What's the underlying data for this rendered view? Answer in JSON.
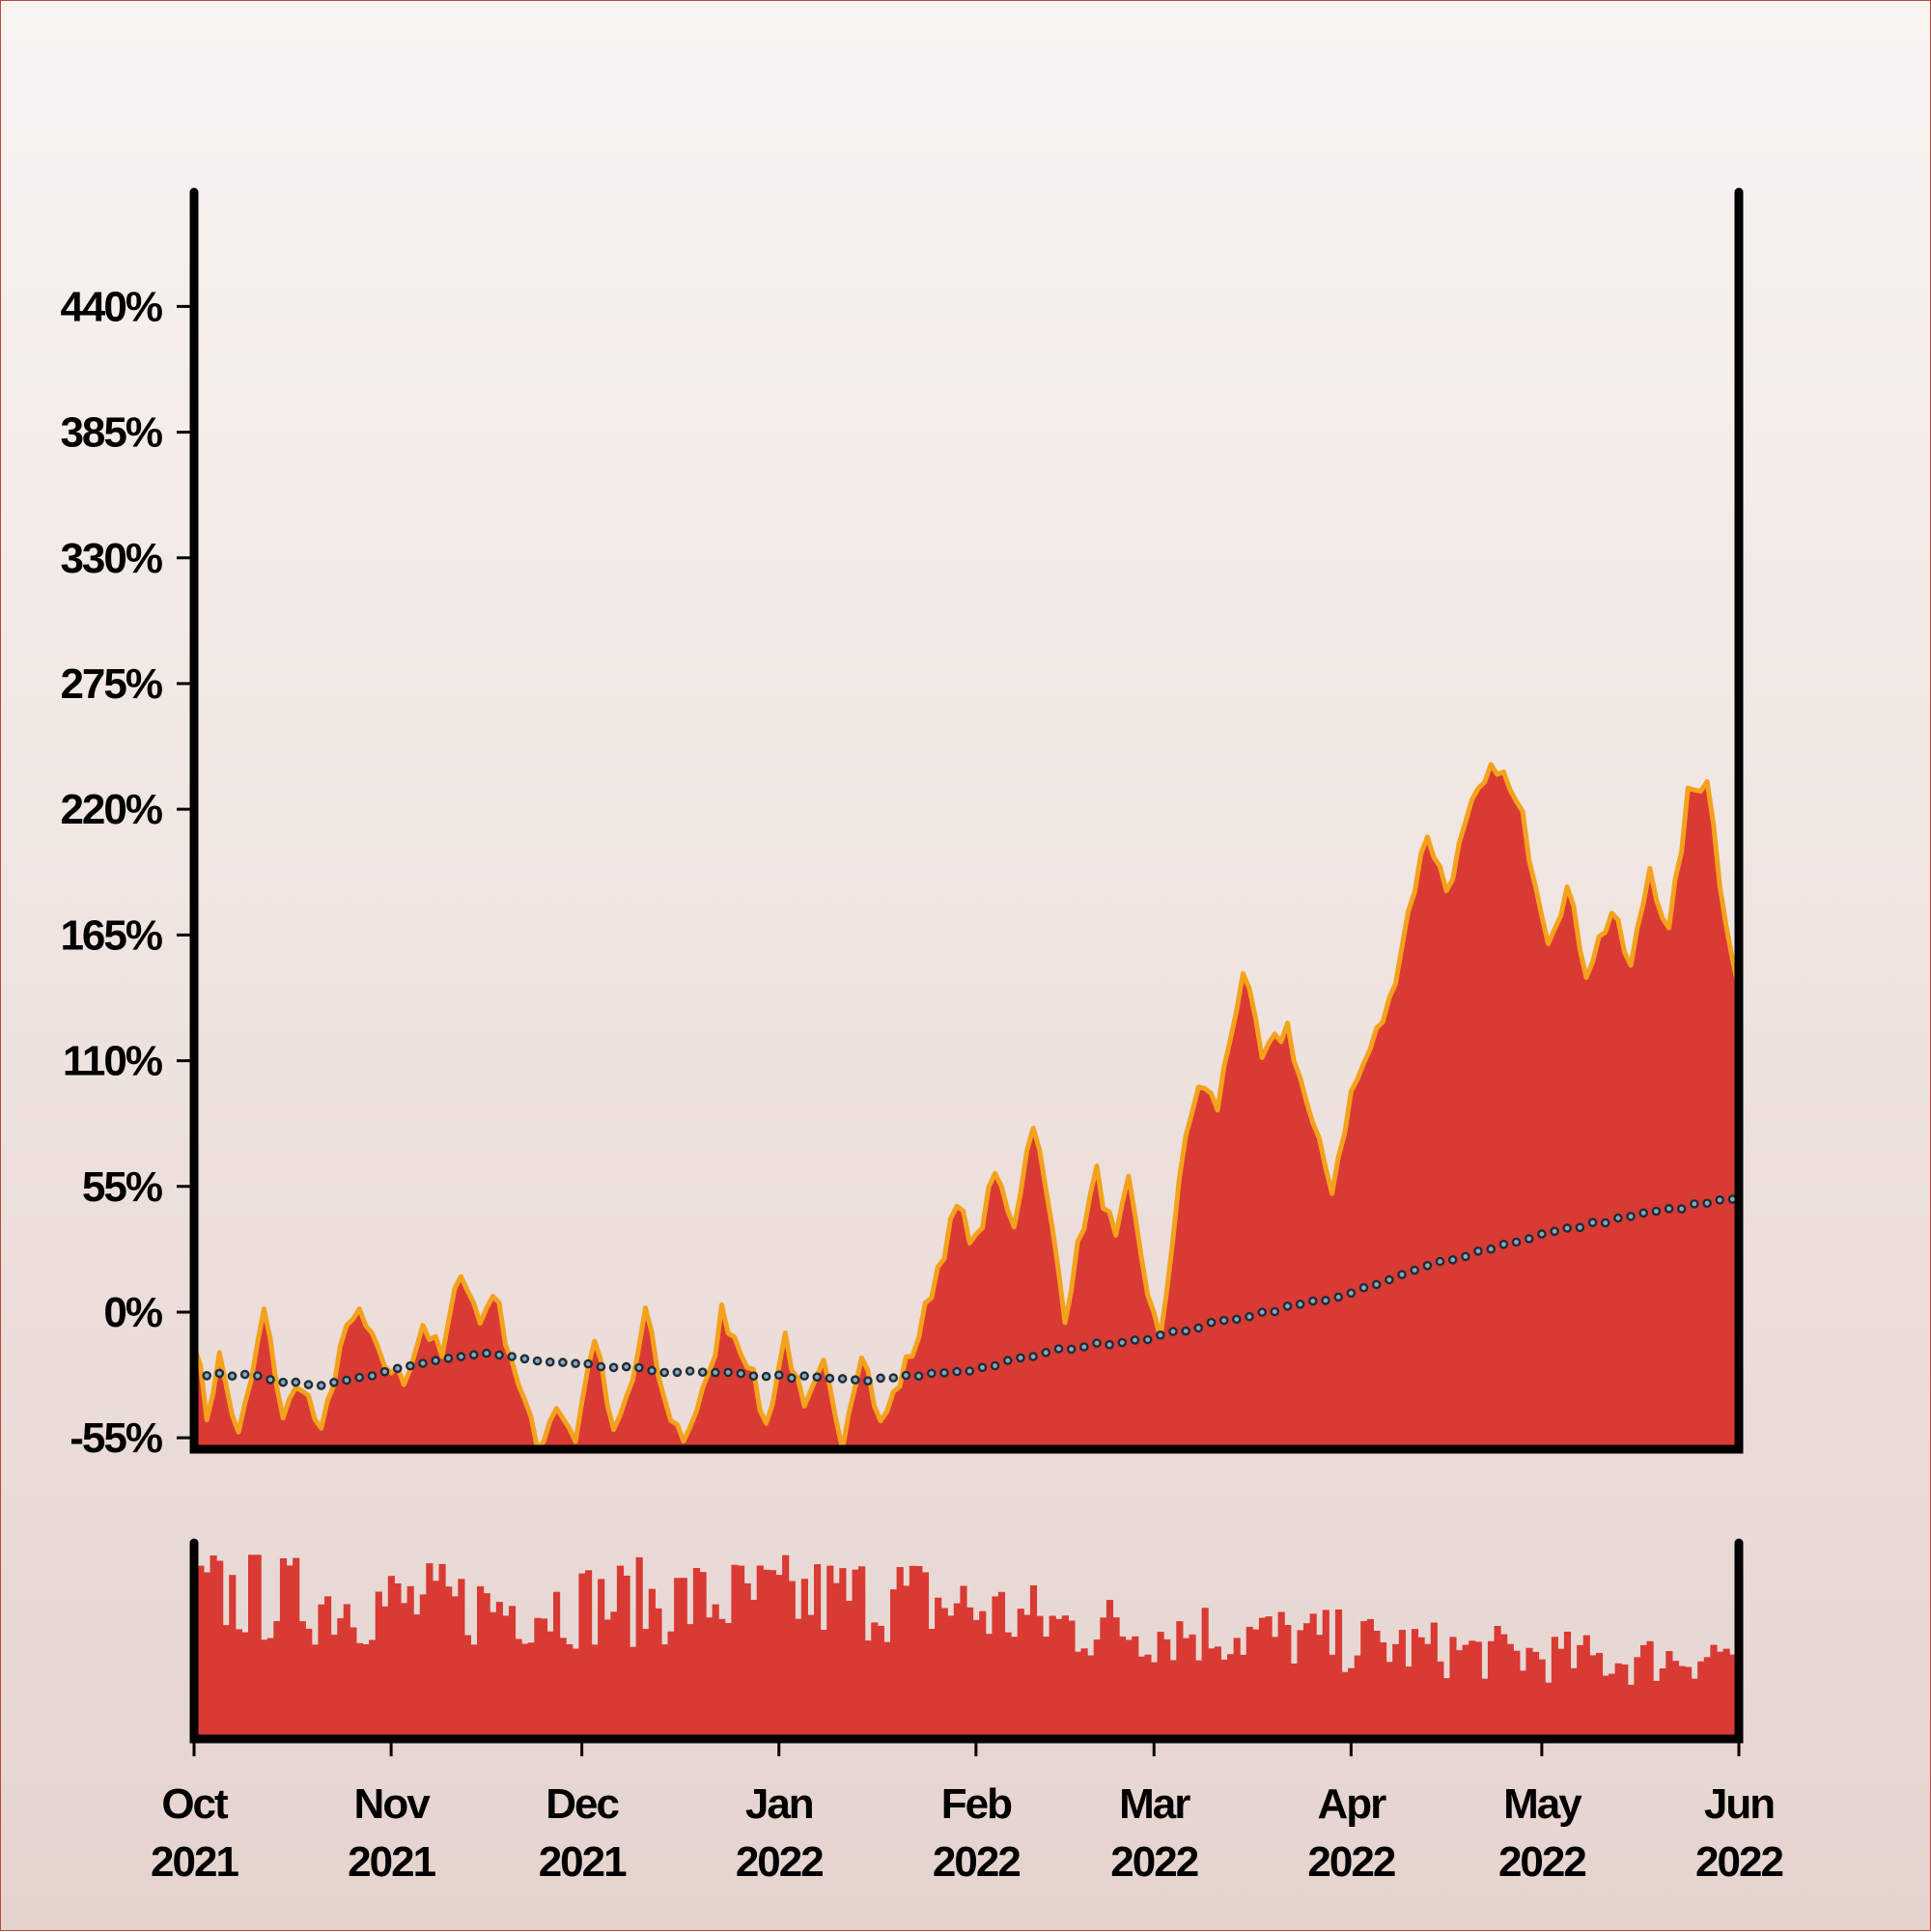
{
  "chart_data": {
    "type": "area",
    "title": "",
    "xlabel": "",
    "ylabel": "",
    "ylim": [
      -60,
      490
    ],
    "yticks": [
      -55,
      0,
      55,
      110,
      165,
      220,
      275,
      330,
      385,
      440
    ],
    "ytick_labels": [
      "-55%",
      "0%",
      "55%",
      "110%",
      "165%",
      "220%",
      "275%",
      "330%",
      "385%",
      "440%"
    ],
    "x_range": [
      "2021-10-01",
      "2022-06-01"
    ],
    "xticks": [
      "2021-10-01",
      "2021-11-01",
      "2021-12-01",
      "2022-01-01",
      "2022-02-01",
      "2022-03-01",
      "2022-04-01",
      "2022-05-01",
      "2022-06-01"
    ],
    "xtick_labels": [
      [
        "Oct",
        "2021"
      ],
      [
        "Nov",
        "2021"
      ],
      [
        "Dec",
        "2021"
      ],
      [
        "Jan",
        "2022"
      ],
      [
        "Feb",
        "2022"
      ],
      [
        "Mar",
        "2022"
      ],
      [
        "Apr",
        "2022"
      ],
      [
        "May",
        "2022"
      ],
      [
        "Jun",
        "2022"
      ]
    ],
    "price_keyframes": [
      [
        "2021-10-01",
        -10
      ],
      [
        "2021-10-03",
        -45
      ],
      [
        "2021-10-05",
        -20
      ],
      [
        "2021-10-08",
        -55
      ],
      [
        "2021-10-10",
        -30
      ],
      [
        "2021-10-12",
        0
      ],
      [
        "2021-10-15",
        -45
      ],
      [
        "2021-10-18",
        -30
      ],
      [
        "2021-10-21",
        -55
      ],
      [
        "2021-10-24",
        -15
      ],
      [
        "2021-10-27",
        0
      ],
      [
        "2021-10-30",
        -20
      ],
      [
        "2021-11-03",
        -30
      ],
      [
        "2021-11-06",
        -5
      ],
      [
        "2021-11-09",
        -20
      ],
      [
        "2021-11-12",
        20
      ],
      [
        "2021-11-15",
        -5
      ],
      [
        "2021-11-17",
        10
      ],
      [
        "2021-11-20",
        -20
      ],
      [
        "2021-11-24",
        -60
      ],
      [
        "2021-11-27",
        -40
      ],
      [
        "2021-11-30",
        -55
      ],
      [
        "2021-12-03",
        -10
      ],
      [
        "2021-12-06",
        -55
      ],
      [
        "2021-12-09",
        -30
      ],
      [
        "2021-12-11",
        0
      ],
      [
        "2021-12-14",
        -40
      ],
      [
        "2021-12-17",
        -55
      ],
      [
        "2021-12-21",
        -30
      ],
      [
        "2021-12-23",
        0
      ],
      [
        "2021-12-27",
        -20
      ],
      [
        "2021-12-30",
        -50
      ],
      [
        "2022-01-02",
        -10
      ],
      [
        "2022-01-05",
        -45
      ],
      [
        "2022-01-08",
        -25
      ],
      [
        "2022-01-11",
        -55
      ],
      [
        "2022-01-14",
        -15
      ],
      [
        "2022-01-17",
        -50
      ],
      [
        "2022-01-20",
        -30
      ],
      [
        "2022-01-23",
        -10
      ],
      [
        "2022-01-26",
        20
      ],
      [
        "2022-01-29",
        45
      ],
      [
        "2022-02-01",
        30
      ],
      [
        "2022-02-04",
        60
      ],
      [
        "2022-02-07",
        40
      ],
      [
        "2022-02-10",
        85
      ],
      [
        "2022-02-13",
        35
      ],
      [
        "2022-02-15",
        0
      ],
      [
        "2022-02-18",
        40
      ],
      [
        "2022-02-20",
        60
      ],
      [
        "2022-02-23",
        30
      ],
      [
        "2022-02-25",
        55
      ],
      [
        "2022-02-28",
        10
      ],
      [
        "2022-03-02",
        -15
      ],
      [
        "2022-03-05",
        60
      ],
      [
        "2022-03-08",
        100
      ],
      [
        "2022-03-11",
        90
      ],
      [
        "2022-03-15",
        150
      ],
      [
        "2022-03-18",
        110
      ],
      [
        "2022-03-22",
        125
      ],
      [
        "2022-03-26",
        80
      ],
      [
        "2022-03-29",
        55
      ],
      [
        "2022-04-01",
        95
      ],
      [
        "2022-04-04",
        115
      ],
      [
        "2022-04-07",
        135
      ],
      [
        "2022-04-10",
        175
      ],
      [
        "2022-04-13",
        210
      ],
      [
        "2022-04-16",
        185
      ],
      [
        "2022-04-20",
        220
      ],
      [
        "2022-04-24",
        240
      ],
      [
        "2022-04-28",
        215
      ],
      [
        "2022-05-02",
        165
      ],
      [
        "2022-05-05",
        185
      ],
      [
        "2022-05-08",
        150
      ],
      [
        "2022-05-12",
        175
      ],
      [
        "2022-05-15",
        150
      ],
      [
        "2022-05-18",
        195
      ],
      [
        "2022-05-21",
        165
      ],
      [
        "2022-05-24",
        225
      ],
      [
        "2022-05-27",
        235
      ],
      [
        "2022-05-29",
        190
      ],
      [
        "2022-06-01",
        140
      ]
    ],
    "moving_average_keyframes": [
      [
        "2021-10-01",
        -28
      ],
      [
        "2021-10-10",
        -27
      ],
      [
        "2021-10-15",
        -30
      ],
      [
        "2021-10-22",
        -32
      ],
      [
        "2021-11-01",
        -26
      ],
      [
        "2021-11-10",
        -20
      ],
      [
        "2021-11-16",
        -18
      ],
      [
        "2021-11-25",
        -22
      ],
      [
        "2021-12-05",
        -24
      ],
      [
        "2021-12-15",
        -26
      ],
      [
        "2022-01-01",
        -28
      ],
      [
        "2022-01-15",
        -30
      ],
      [
        "2022-02-01",
        -25
      ],
      [
        "2022-02-15",
        -16
      ],
      [
        "2022-03-01",
        -11
      ],
      [
        "2022-03-15",
        -2
      ],
      [
        "2022-04-01",
        8
      ],
      [
        "2022-04-15",
        22
      ],
      [
        "2022-05-01",
        34
      ],
      [
        "2022-05-15",
        42
      ],
      [
        "2022-06-01",
        50
      ]
    ],
    "volume_keyframes": [
      [
        "2021-10-01",
        0.9
      ],
      [
        "2021-10-20",
        0.85
      ],
      [
        "2021-11-15",
        0.82
      ],
      [
        "2021-12-15",
        0.85
      ],
      [
        "2022-01-20",
        0.88
      ],
      [
        "2022-02-15",
        0.7
      ],
      [
        "2022-03-15",
        0.65
      ],
      [
        "2022-04-15",
        0.55
      ],
      [
        "2022-05-15",
        0.48
      ],
      [
        "2022-06-01",
        0.55
      ]
    ],
    "colors": {
      "area_fill": "#d93a33",
      "price_line": "#f4a21c",
      "moving_average": "#1d2d3a",
      "volume": "#d93a33",
      "axis": "#000000",
      "background_top": "#f8f4f1",
      "background_bottom": "#e5d3ce"
    }
  }
}
